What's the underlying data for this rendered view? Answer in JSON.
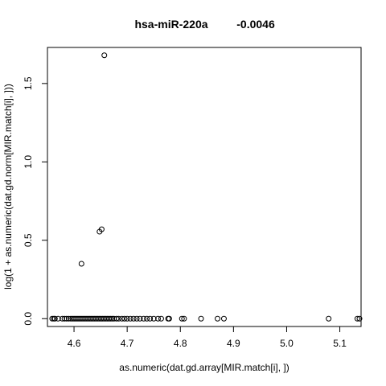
{
  "chart_data": {
    "type": "scatter",
    "title_gene": "hsa-miR-220a",
    "title_value": "-0.0046",
    "xlabel": "as.numeric(dat.gd.array[MIR.match[i], ])",
    "ylabel": "log(1 + as.numeric(dat.gd.norm[MIR.match[i], ]))",
    "xlim": [
      4.55,
      5.14
    ],
    "ylim": [
      -0.05,
      1.73
    ],
    "xticks": [
      4.6,
      4.7,
      4.8,
      4.9,
      5.0,
      5.1
    ],
    "xtick_labels": [
      "4.6",
      "4.7",
      "4.8",
      "4.9",
      "5.0",
      "5.1"
    ],
    "yticks": [
      0.0,
      0.5,
      1.0,
      1.5
    ],
    "ytick_labels": [
      "0.0",
      "0.5",
      "1.0",
      "1.5"
    ],
    "grid": false,
    "marker": "open-circle",
    "points": {
      "x": [
        4.657,
        4.652,
        4.648,
        4.614,
        4.559,
        4.562,
        4.564,
        4.57,
        4.578,
        4.582,
        4.586,
        4.59,
        4.594,
        4.597,
        4.6,
        4.603,
        4.606,
        4.609,
        4.612,
        4.615,
        4.618,
        4.621,
        4.624,
        4.627,
        4.63,
        4.633,
        4.636,
        4.639,
        4.642,
        4.645,
        4.648,
        4.651,
        4.654,
        4.657,
        4.66,
        4.663,
        4.666,
        4.669,
        4.672,
        4.675,
        4.68,
        4.684,
        4.69,
        4.695,
        4.7,
        4.706,
        4.712,
        4.718,
        4.724,
        4.731,
        4.737,
        4.743,
        4.75,
        4.758,
        4.764,
        4.777,
        4.779,
        4.803,
        4.807,
        4.839,
        4.87,
        4.882,
        5.079,
        5.133,
        5.137
      ],
      "y": [
        1.68,
        0.57,
        0.555,
        0.35,
        0,
        0,
        0,
        0,
        0,
        0,
        0,
        0,
        0,
        0,
        0,
        0,
        0,
        0,
        0,
        0,
        0,
        0,
        0,
        0,
        0,
        0,
        0,
        0,
        0,
        0,
        0,
        0,
        0,
        0,
        0,
        0,
        0,
        0,
        0,
        0,
        0,
        0,
        0,
        0,
        0,
        0,
        0,
        0,
        0,
        0,
        0,
        0,
        0,
        0,
        0,
        0,
        0,
        0,
        0,
        0,
        0,
        0,
        0,
        0,
        0
      ]
    }
  }
}
